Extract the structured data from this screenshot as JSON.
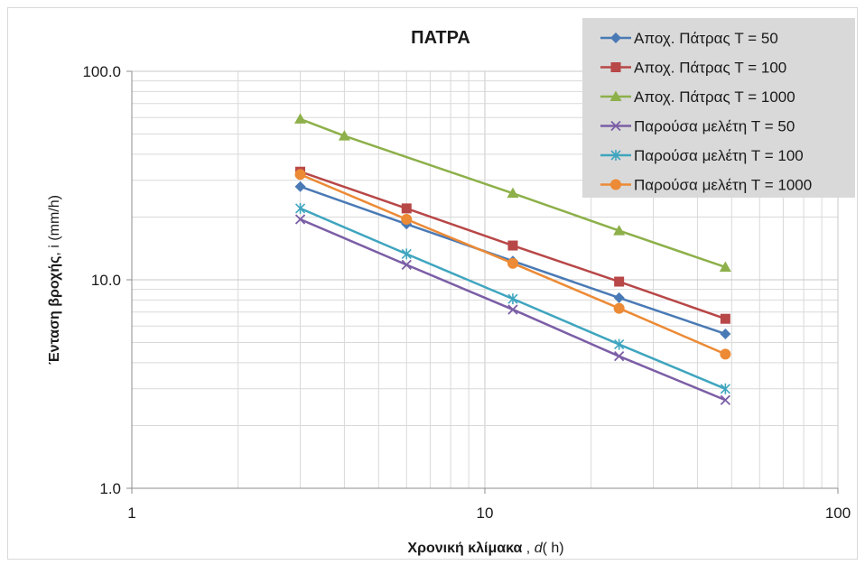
{
  "chart_data": {
    "type": "line",
    "title": "ΠΑΤΡΑ",
    "xlabel": {
      "bold": "Χρονική κλίμακα",
      "sep": " , ",
      "italic": "d",
      "unit": "( h)"
    },
    "ylabel": {
      "bold": "Ένταση βροχής",
      "rest": ", i (mm/h)"
    },
    "xscale": "log",
    "yscale": "log",
    "xlim": [
      1,
      100
    ],
    "ylim": [
      1,
      100
    ],
    "xticks": [
      1,
      10,
      100
    ],
    "xtick_labels": [
      "1",
      "10",
      "100"
    ],
    "yticks": [
      1,
      10,
      100
    ],
    "ytick_labels": [
      "1.0",
      "10.0",
      "100.0"
    ],
    "grid": "major and minor",
    "legend_position": "top-right",
    "series": [
      {
        "name": "Αποχ. Πάτρας T = 50",
        "color": "#4a7ab5",
        "marker": "diamond",
        "x": [
          3,
          6,
          12,
          24,
          48
        ],
        "y": [
          28.0,
          18.5,
          12.3,
          8.2,
          5.5
        ]
      },
      {
        "name": "Αποχ. Πάτρας T = 100",
        "color": "#b84747",
        "marker": "square",
        "x": [
          3,
          6,
          12,
          24,
          48
        ],
        "y": [
          33.0,
          22.0,
          14.6,
          9.8,
          6.5
        ]
      },
      {
        "name": "Αποχ. Πάτρας T = 1000",
        "color": "#8db04a",
        "marker": "triangle",
        "x": [
          3,
          4,
          12,
          24,
          48
        ],
        "y": [
          59.0,
          49.0,
          26.0,
          17.2,
          11.5
        ]
      },
      {
        "name": "Παρούσα μελέτη T = 50",
        "color": "#7b5ea6",
        "marker": "x",
        "x": [
          3,
          6,
          12,
          24,
          48
        ],
        "y": [
          19.5,
          11.8,
          7.2,
          4.3,
          2.65
        ]
      },
      {
        "name": "Παρούσα μελέτη T = 100",
        "color": "#3fa5bf",
        "marker": "star",
        "x": [
          3,
          6,
          12,
          24,
          48
        ],
        "y": [
          22.0,
          13.3,
          8.1,
          4.9,
          3.0
        ]
      },
      {
        "name": "Παρούσα μελέτη T = 1000",
        "color": "#ec8a35",
        "marker": "circle",
        "x": [
          3,
          6,
          12,
          24,
          48
        ],
        "y": [
          32.0,
          19.5,
          12.0,
          7.3,
          4.4
        ]
      }
    ]
  }
}
